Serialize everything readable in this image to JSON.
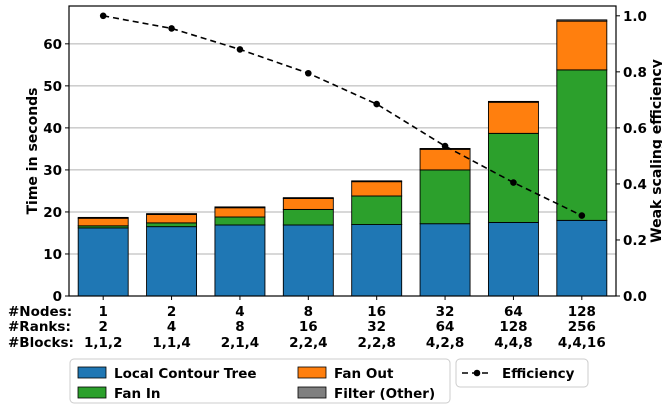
{
  "chart_data": {
    "type": "bar",
    "stacked": true,
    "categories": [
      {
        "nodes": "1",
        "ranks": "2",
        "blocks": "1,1,2"
      },
      {
        "nodes": "2",
        "ranks": "4",
        "blocks": "1,1,4"
      },
      {
        "nodes": "4",
        "ranks": "8",
        "blocks": "2,1,4"
      },
      {
        "nodes": "8",
        "ranks": "16",
        "blocks": "2,2,4"
      },
      {
        "nodes": "16",
        "ranks": "32",
        "blocks": "2,2,8"
      },
      {
        "nodes": "32",
        "ranks": "64",
        "blocks": "4,2,8"
      },
      {
        "nodes": "64",
        "ranks": "128",
        "blocks": "4,4,8"
      },
      {
        "nodes": "128",
        "ranks": "256",
        "blocks": "4,4,16"
      }
    ],
    "row_labels": {
      "nodes": "#Nodes:",
      "ranks": "#Ranks:",
      "blocks": "#Blocks:"
    },
    "series": [
      {
        "name": "Local Contour Tree",
        "color": "#1f77b4",
        "values": [
          16.2,
          16.5,
          16.9,
          16.9,
          17.0,
          17.2,
          17.5,
          18.0
        ]
      },
      {
        "name": "Fan In",
        "color": "#2ca02c",
        "values": [
          0.5,
          0.9,
          1.9,
          3.7,
          6.8,
          12.8,
          21.2,
          35.8
        ]
      },
      {
        "name": "Fan Out",
        "color": "#ff7f0e",
        "values": [
          1.8,
          2.0,
          2.2,
          2.6,
          3.4,
          4.9,
          7.4,
          11.6
        ]
      },
      {
        "name": "Filter (Other)",
        "color": "#7f7f7f",
        "values": [
          0.2,
          0.2,
          0.2,
          0.2,
          0.2,
          0.2,
          0.2,
          0.3
        ]
      }
    ],
    "efficiency": {
      "name": "Efficiency",
      "values": [
        1.0,
        0.955,
        0.88,
        0.795,
        0.685,
        0.535,
        0.405,
        0.287
      ]
    },
    "ylabel": "Time in seconds",
    "y2label": "Weak scaling efficiency",
    "ylim": [
      0,
      69
    ],
    "y2lim": [
      0,
      1.035
    ],
    "yticks": [
      0,
      10,
      20,
      30,
      40,
      50,
      60
    ],
    "y2ticks": [
      0.0,
      0.2,
      0.4,
      0.6,
      0.8,
      1.0
    ],
    "grid": true,
    "legend_position": "bottom"
  }
}
